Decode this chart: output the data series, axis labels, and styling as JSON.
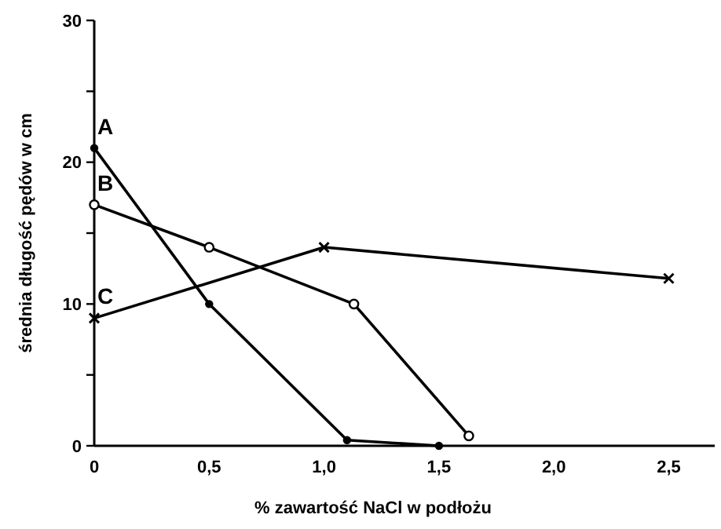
{
  "chart_data": {
    "type": "line",
    "xlabel": "% zawartość NaCl w podłożu",
    "ylabel": "średnia długość pędów w cm",
    "xlim": [
      0,
      2.7
    ],
    "ylim": [
      0,
      30
    ],
    "xticks": [
      0,
      {
        "value": 0.5,
        "label": "0,5"
      },
      {
        "value": 1,
        "label": "1,0"
      },
      {
        "value": 1.5,
        "label": "1,5"
      },
      {
        "value": 2,
        "label": "2,0"
      },
      {
        "value": 2.5,
        "label": "2,5"
      }
    ],
    "yticks": [
      0,
      {
        "value": 5,
        "label": null
      },
      10,
      {
        "value": 15,
        "label": null
      },
      20,
      {
        "value": 25,
        "label": null
      },
      30
    ],
    "grid": false,
    "line_style": "solid",
    "series": [
      {
        "name": "A",
        "color": "#000000",
        "marker": "circle",
        "x": [
          0,
          0.5,
          1.1,
          1.5
        ],
        "values": [
          21,
          10,
          0.4,
          0
        ]
      },
      {
        "name": "B",
        "color": "#000000",
        "marker": "open-circle",
        "x": [
          0,
          0.5,
          1.13,
          1.63
        ],
        "values": [
          17,
          14,
          10,
          0.7
        ]
      },
      {
        "name": "C",
        "color": "#000000",
        "marker": "cross",
        "x": [
          0,
          1,
          2.5
        ],
        "values": [
          9,
          14,
          11.8
        ]
      }
    ]
  }
}
